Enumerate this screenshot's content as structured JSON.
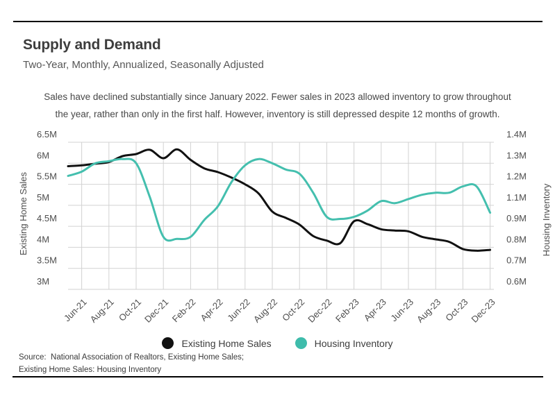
{
  "page": {
    "title": "Supply and Demand",
    "subtitle": "Two-Year, Monthly, Annualized, Seasonally Adjusted",
    "annotation_line1": "Sales have declined substantially since January 2022. Fewer sales in 2023 allowed inventory to grow throughout",
    "annotation_line2": "the year, rather than only in the first half. However, inventory is still depressed despite 12 months of growth.",
    "source_line1": "Source:  National Association of Realtors, Existing Home Sales;",
    "source_line2": "Existing Home Sales: Housing Inventory"
  },
  "legend": [
    {
      "label": "Existing Home Sales",
      "color": "#111111"
    },
    {
      "label": "Housing Inventory",
      "color": "#3ebcab"
    }
  ],
  "colors": {
    "sales_line": "#111111",
    "inventory_line": "#44bfae",
    "gridline": "#d2d2d2",
    "axis_text": "#4d4d4d"
  },
  "chart_data": {
    "type": "line",
    "title": "Supply and Demand",
    "subtitle": "Two-Year, Monthly, Annualized, Seasonally Adjusted",
    "grid": true,
    "x": [
      "May-21",
      "Jun-21",
      "Jul-21",
      "Aug-21",
      "Sep-21",
      "Oct-21",
      "Nov-21",
      "Dec-21",
      "Jan-22",
      "Feb-22",
      "Mar-22",
      "Apr-22",
      "May-22",
      "Jun-22",
      "Jul-22",
      "Aug-22",
      "Sep-22",
      "Oct-22",
      "Nov-22",
      "Dec-22",
      "Jan-23",
      "Feb-23",
      "Mar-23",
      "Apr-23",
      "May-23",
      "Jun-23",
      "Jul-23",
      "Aug-23",
      "Sep-23",
      "Oct-23",
      "Nov-23",
      "Dec-23"
    ],
    "x_tick_labels": [
      "Jun-21",
      "Aug-21",
      "Oct-21",
      "Dec-21",
      "Feb-22",
      "Apr-22",
      "Jun-22",
      "Aug-22",
      "Oct-22",
      "Dec-22",
      "Feb-23",
      "Apr-23",
      "Jun-23",
      "Aug-23",
      "Oct-23",
      "Dec-23"
    ],
    "left_axis": {
      "label": "Existing Home Sales",
      "tick_labels": [
        "6.5M",
        "6M",
        "5.5M",
        "5M",
        "4.5M",
        "4M",
        "3.5M",
        "3M"
      ],
      "tick_values": [
        6.5,
        6.0,
        5.5,
        5.0,
        4.5,
        4.0,
        3.5,
        3.0
      ],
      "range": [
        3.0,
        6.5
      ]
    },
    "right_axis": {
      "label": "Housing Inventory",
      "tick_labels": [
        "1.4M",
        "1.3M",
        "1.2M",
        "1.1M",
        "0.9M",
        "0.8M",
        "0.7M",
        "0.6M"
      ],
      "tick_values": [
        1.4,
        1.3,
        1.2,
        1.1,
        0.9,
        0.8,
        0.7,
        0.6
      ],
      "range": [
        0.6,
        1.4
      ]
    },
    "series": [
      {
        "name": "Existing Home Sales",
        "axis": "left",
        "unit": "millions, SAAR",
        "values": [
          5.93,
          5.95,
          5.99,
          6.03,
          6.17,
          6.22,
          6.32,
          6.12,
          6.33,
          6.08,
          5.88,
          5.79,
          5.66,
          5.5,
          5.28,
          4.85,
          4.7,
          4.54,
          4.27,
          4.16,
          4.1,
          4.62,
          4.55,
          4.43,
          4.4,
          4.38,
          4.25,
          4.19,
          4.13,
          3.96,
          3.92,
          3.94
        ]
      },
      {
        "name": "Housing Inventory",
        "axis": "right",
        "unit": "millions",
        "values": [
          1.24,
          1.26,
          1.3,
          1.31,
          1.32,
          1.3,
          1.14,
          0.85,
          0.84,
          0.85,
          0.96,
          1.09,
          1.21,
          1.29,
          1.32,
          1.3,
          1.27,
          1.25,
          1.16,
          0.99,
          0.97,
          0.99,
          1.05,
          1.12,
          1.11,
          1.13,
          1.15,
          1.16,
          1.16,
          1.19,
          1.19,
          1.03
        ]
      }
    ]
  }
}
